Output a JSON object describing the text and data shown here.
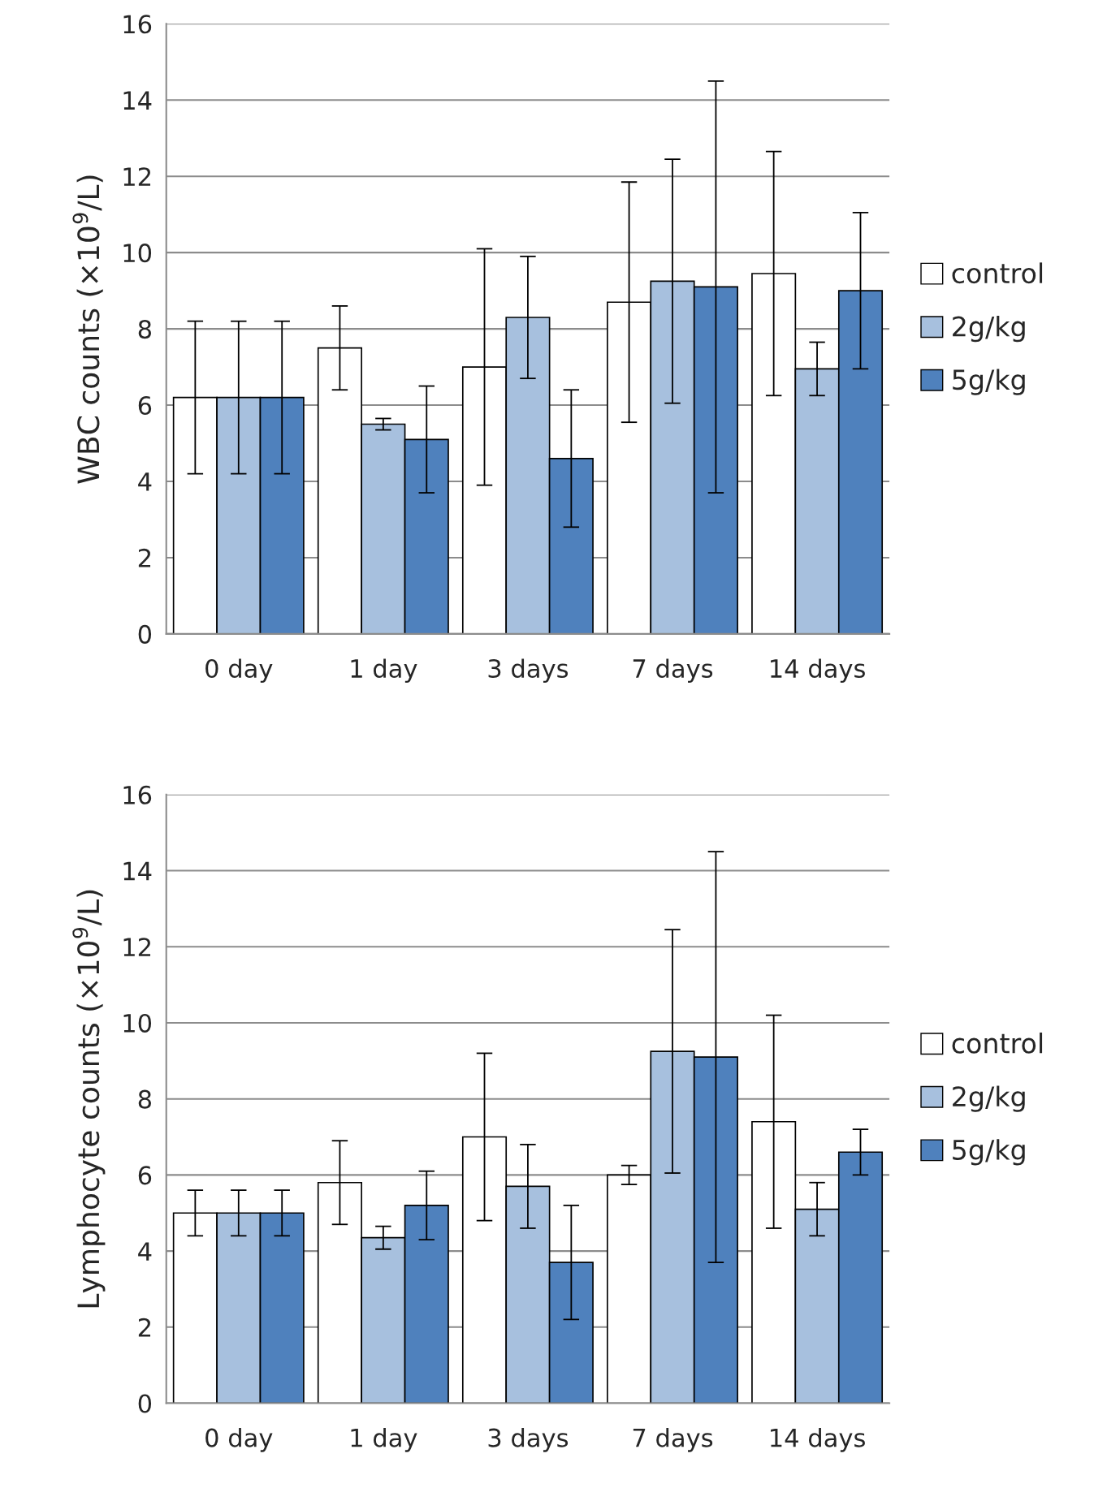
{
  "chart_data": [
    {
      "type": "bar",
      "ylabel": "WBC counts (×10$^{9}$/L)",
      "categories": [
        "0 day",
        "1 day",
        "3 days",
        "7 days",
        "14 days"
      ],
      "ylim": [
        0,
        16
      ],
      "yticks": [
        0,
        2,
        4,
        6,
        8,
        10,
        12,
        14,
        16
      ],
      "grid": "y",
      "legend": "right",
      "series": [
        {
          "name": "control",
          "color": "#ffffff",
          "values": [
            6.2,
            7.5,
            7.0,
            8.7,
            9.45
          ],
          "errors": [
            2.0,
            1.1,
            3.1,
            3.15,
            3.2
          ]
        },
        {
          "name": "2g/kg",
          "color": "#a7c0de",
          "values": [
            6.2,
            5.5,
            8.3,
            9.25,
            6.95
          ],
          "errors": [
            2.0,
            0.15,
            1.6,
            3.2,
            0.7
          ]
        },
        {
          "name": "5g/kg",
          "color": "#4f81bd",
          "values": [
            6.2,
            5.1,
            4.6,
            9.1,
            9.0
          ],
          "errors": [
            2.0,
            1.4,
            1.8,
            5.4,
            2.05
          ]
        }
      ]
    },
    {
      "type": "bar",
      "ylabel": "Lymphocyte counts (×10$^{9}$/L)",
      "categories": [
        "0 day",
        "1 day",
        "3 days",
        "7 days",
        "14 days"
      ],
      "ylim": [
        0,
        16
      ],
      "yticks": [
        0,
        2,
        4,
        6,
        8,
        10,
        12,
        14,
        16
      ],
      "grid": "y",
      "legend": "right",
      "series": [
        {
          "name": "control",
          "color": "#ffffff",
          "values": [
            5.0,
            5.8,
            7.0,
            6.0,
            7.4
          ],
          "errors": [
            0.6,
            1.1,
            2.2,
            0.25,
            2.8
          ]
        },
        {
          "name": "2g/kg",
          "color": "#a7c0de",
          "values": [
            5.0,
            4.35,
            5.7,
            9.25,
            5.1
          ],
          "errors": [
            0.6,
            0.3,
            1.1,
            3.2,
            0.7
          ]
        },
        {
          "name": "5g/kg",
          "color": "#4f81bd",
          "values": [
            5.0,
            5.2,
            3.7,
            9.1,
            6.6
          ],
          "errors": [
            0.6,
            0.9,
            1.5,
            5.4,
            0.6
          ]
        }
      ]
    }
  ]
}
